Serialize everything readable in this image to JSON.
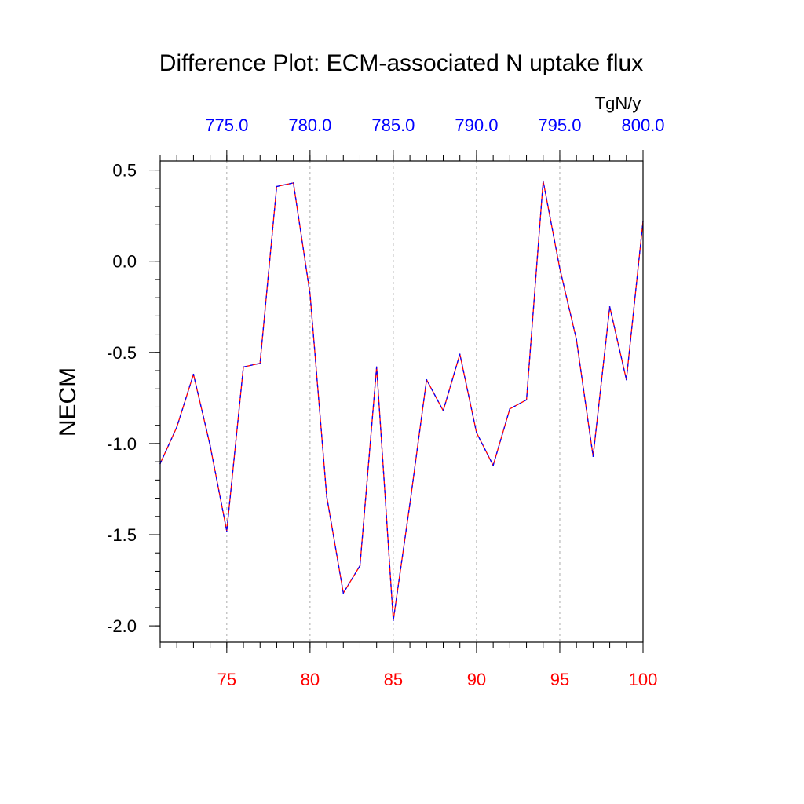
{
  "chart_data": {
    "type": "line",
    "title": "Difference Plot: ECM-associated N uptake flux",
    "xlabel": "",
    "ylabel": "NECM",
    "units": "TgN/y",
    "xlim": [
      71,
      100
    ],
    "ylim": [
      -2.09,
      0.55
    ],
    "grid": "vertical-dashed",
    "x": [
      71,
      72,
      73,
      74,
      75,
      76,
      77,
      78,
      79,
      80,
      81,
      82,
      83,
      84,
      85,
      86,
      87,
      88,
      89,
      90,
      91,
      92,
      93,
      94,
      95,
      96,
      97,
      98,
      99,
      100
    ],
    "series": [
      {
        "color": "#ff0000",
        "dash_color": "#0000ff",
        "values": [
          -1.11,
          -0.91,
          -0.62,
          -1.01,
          -1.48,
          -0.58,
          -0.56,
          0.41,
          0.43,
          -0.18,
          -1.29,
          -1.82,
          -1.67,
          -0.58,
          -1.97,
          -1.33,
          -0.65,
          -0.82,
          -0.51,
          -0.94,
          -1.12,
          -0.81,
          -0.76,
          0.44,
          -0.04,
          -0.43,
          -1.07,
          -0.25,
          -0.65,
          0.22
        ]
      }
    ],
    "bottom_axis": {
      "ticks": [
        75,
        80,
        85,
        90,
        95,
        100
      ],
      "labels": [
        "75",
        "80",
        "85",
        "90",
        "95",
        "100"
      ],
      "color": "#ff0000"
    },
    "top_axis": {
      "ticks": [
        75,
        80,
        85,
        90,
        95,
        100
      ],
      "labels": [
        "775.0",
        "780.0",
        "785.0",
        "790.0",
        "795.0",
        "800.0"
      ],
      "color": "#0000ff"
    },
    "left_axis": {
      "ticks": [
        0.5,
        0.0,
        -0.5,
        -1.0,
        -1.5,
        -2.0
      ],
      "labels": [
        "0.5",
        "0.0",
        "-0.5",
        "-1.0",
        "-1.5",
        "-2.0"
      ],
      "color": "#000000"
    }
  }
}
